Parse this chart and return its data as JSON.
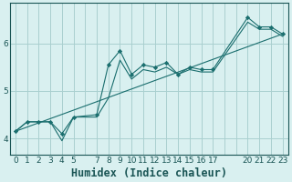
{
  "xlabel": "Humidex (Indice chaleur)",
  "bg_color": "#d9f0f0",
  "grid_color": "#aacfcf",
  "line_color": "#1a6e6e",
  "marker_color": "#1a6e6e",
  "series": [
    {
      "x": [
        0,
        1,
        2,
        3,
        4,
        5,
        7,
        8,
        9,
        10,
        11,
        12,
        13,
        14,
        15,
        16,
        17,
        20,
        21,
        22,
        23
      ],
      "y": [
        4.15,
        4.35,
        4.35,
        4.35,
        4.1,
        4.45,
        4.5,
        5.55,
        5.85,
        5.35,
        5.55,
        5.5,
        5.6,
        5.35,
        5.5,
        5.45,
        5.45,
        6.55,
        6.35,
        6.35,
        6.2
      ],
      "marker": true
    },
    {
      "x": [
        0,
        1,
        2,
        3,
        4,
        5,
        7,
        8,
        9,
        10,
        11,
        12,
        13,
        14,
        15,
        16,
        17,
        20,
        21,
        22,
        23
      ],
      "y": [
        4.15,
        4.35,
        4.35,
        4.35,
        3.95,
        4.45,
        4.45,
        4.85,
        5.65,
        5.25,
        5.45,
        5.4,
        5.5,
        5.35,
        5.45,
        5.4,
        5.4,
        6.45,
        6.3,
        6.3,
        6.15
      ],
      "marker": false
    },
    {
      "x": [
        0,
        23
      ],
      "y": [
        4.15,
        6.2
      ],
      "marker": false
    }
  ],
  "grid_xticks": [
    0,
    1,
    2,
    3,
    4,
    5,
    6,
    7,
    8,
    9,
    10,
    11,
    12,
    13,
    14,
    15,
    16,
    17,
    18,
    19,
    20,
    21,
    22,
    23
  ],
  "label_xticks": [
    0,
    1,
    2,
    3,
    4,
    5,
    7,
    8,
    9,
    10,
    11,
    12,
    13,
    14,
    15,
    16,
    17,
    20,
    21,
    22,
    23
  ],
  "yticks": [
    4,
    5,
    6
  ],
  "xlim": [
    -0.5,
    23.5
  ],
  "ylim": [
    3.65,
    6.85
  ],
  "tick_fontsize": 6.5,
  "xlabel_fontsize": 8.5
}
